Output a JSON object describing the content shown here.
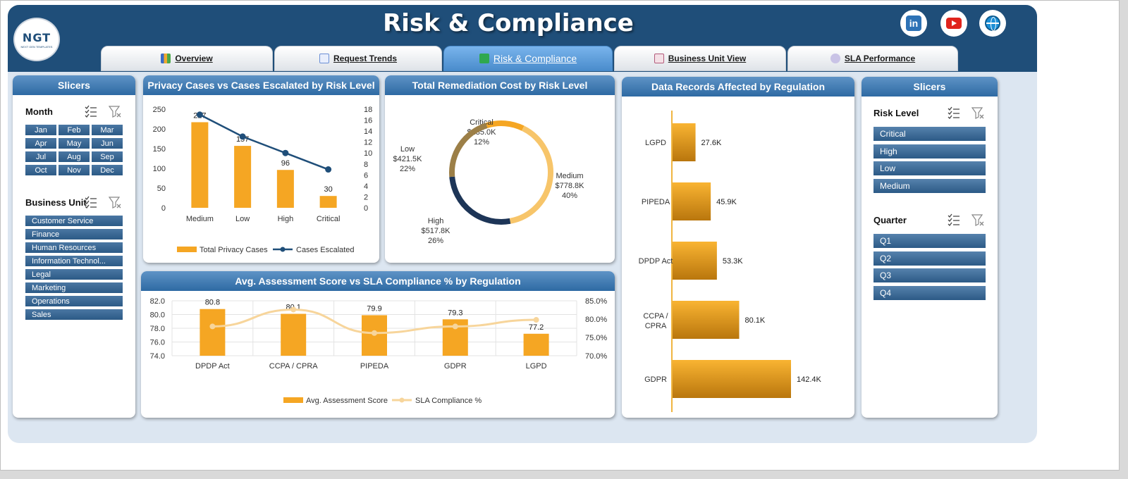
{
  "header": {
    "title": "Risk & Compliance",
    "logo": {
      "text": "NGT",
      "subtext": "NEXT GEN TEMPLATES"
    },
    "social": [
      {
        "name": "linkedin-icon",
        "label": "in"
      },
      {
        "name": "youtube-icon"
      },
      {
        "name": "globe-icon"
      }
    ]
  },
  "tabs": [
    {
      "label": "Overview",
      "icon": "chart-icon",
      "active": false
    },
    {
      "label": "Request Trends",
      "icon": "trend-icon",
      "active": false
    },
    {
      "label": "Risk & Compliance",
      "icon": "check-icon",
      "active": true
    },
    {
      "label": "Business Unit View",
      "icon": "report-icon",
      "active": false
    },
    {
      "label": "SLA Performance",
      "icon": "gear-icon",
      "active": false
    }
  ],
  "left_slicers": {
    "title": "Slicers",
    "month_label": "Month",
    "months": [
      "Jan",
      "Feb",
      "Mar",
      "Apr",
      "May",
      "Jun",
      "Jul",
      "Aug",
      "Sep",
      "Oct",
      "Nov",
      "Dec"
    ],
    "bu_label": "Business Unit",
    "business_units": [
      "Customer Service",
      "Finance",
      "Human Resources",
      "Information Technol...",
      "Legal",
      "Marketing",
      "Operations",
      "Sales"
    ]
  },
  "right_slicers": {
    "title": "Slicers",
    "risk_label": "Risk Level",
    "risk_levels": [
      "Critical",
      "High",
      "Low",
      "Medium"
    ],
    "quarter_label": "Quarter",
    "quarters": [
      "Q1",
      "Q2",
      "Q3",
      "Q4"
    ]
  },
  "colors": {
    "navy": "#1f4e79",
    "orange": "#f5a623",
    "line_dark": "#1f4e79",
    "line_light": "#f7d59b",
    "donut_low": "#9c7f47",
    "donut_medium": "#f7c56a",
    "donut_high": "#1d3557",
    "donut_critical": "#f5a623"
  },
  "chart_data": [
    {
      "id": "privacy",
      "type": "bar",
      "title": "Privacy Cases vs Cases Escalated by Risk Level",
      "categories": [
        "Medium",
        "Low",
        "High",
        "Critical"
      ],
      "series": [
        {
          "name": "Total Privacy Cases",
          "type": "bar",
          "axis": "left",
          "values": [
            217,
            157,
            96,
            30
          ]
        },
        {
          "name": "Cases Escalated",
          "type": "line",
          "axis": "right",
          "values": [
            17,
            13,
            10,
            7
          ]
        }
      ],
      "data_labels": [
        "217",
        "157",
        "96",
        "30"
      ],
      "y_left": {
        "min": 0,
        "max": 250,
        "ticks": [
          "0",
          "50",
          "100",
          "150",
          "200",
          "250"
        ]
      },
      "y_right": {
        "min": 0,
        "max": 18,
        "ticks": [
          "0",
          "2",
          "4",
          "6",
          "8",
          "10",
          "12",
          "14",
          "16",
          "18"
        ]
      },
      "legend": "bottom"
    },
    {
      "id": "remediation",
      "type": "pie",
      "title": "Total Remediation Cost by Risk Level",
      "donut": true,
      "slices": [
        {
          "name": "Critical",
          "value": 235.0,
          "label": "$235.0K",
          "pct": "12%"
        },
        {
          "name": "Medium",
          "value": 778.8,
          "label": "$778.8K",
          "pct": "40%"
        },
        {
          "name": "High",
          "value": 517.8,
          "label": "$517.8K",
          "pct": "26%"
        },
        {
          "name": "Low",
          "value": 421.5,
          "label": "$421.5K",
          "pct": "22%"
        }
      ]
    },
    {
      "id": "records",
      "type": "bar",
      "orientation": "horizontal",
      "title": "Data Records Affected by Regulation",
      "categories": [
        "LGPD",
        "PIPEDA",
        "DPDP Act",
        "CCPA / CPRA",
        "GDPR"
      ],
      "values": [
        27.6,
        45.9,
        53.3,
        80.1,
        142.4
      ],
      "data_labels": [
        "27.6K",
        "45.9K",
        "53.3K",
        "80.1K",
        "142.4K"
      ]
    },
    {
      "id": "assessment",
      "type": "bar",
      "title": "Avg. Assessment Score vs SLA Compliance % by Regulation",
      "categories": [
        "DPDP Act",
        "CCPA / CPRA",
        "PIPEDA",
        "GDPR",
        "LGPD"
      ],
      "series": [
        {
          "name": "Avg. Assessment Score",
          "type": "bar",
          "axis": "left",
          "values": [
            80.8,
            80.1,
            79.9,
            79.3,
            77.2
          ]
        },
        {
          "name": "SLA Compliance %",
          "type": "line",
          "axis": "right",
          "values": [
            78.0,
            82.6,
            76.2,
            78.0,
            79.8
          ]
        }
      ],
      "data_labels": [
        "80.8",
        "80.1",
        "79.9",
        "79.3",
        "77.2"
      ],
      "y_left": {
        "min": 74.0,
        "max": 82.0,
        "ticks": [
          "74.0",
          "76.0",
          "78.0",
          "80.0",
          "82.0"
        ]
      },
      "y_right": {
        "min": 70.0,
        "max": 85.0,
        "ticks": [
          "70.0%",
          "75.0%",
          "80.0%",
          "85.0%"
        ]
      },
      "legend": "bottom"
    }
  ]
}
